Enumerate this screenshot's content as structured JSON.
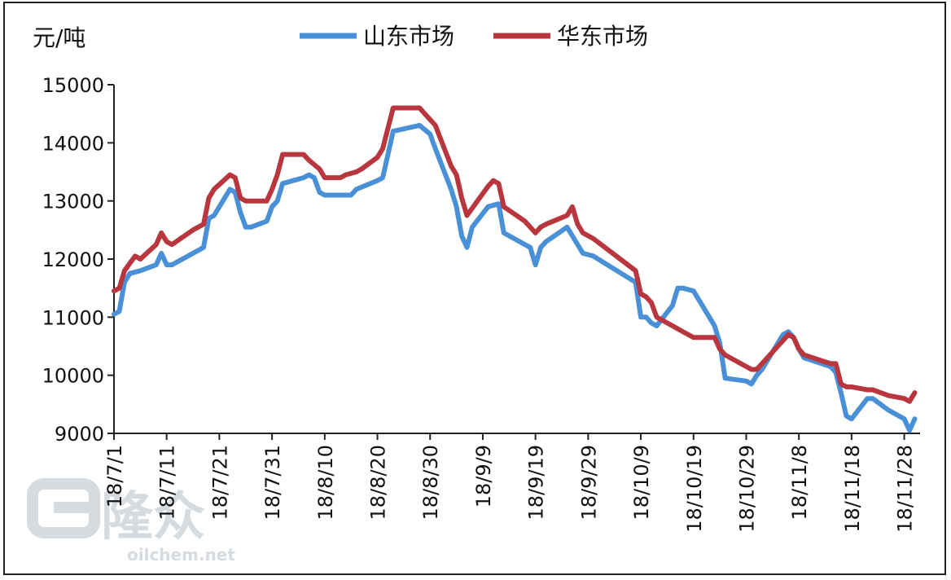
{
  "chart_data": {
    "type": "line",
    "y_unit_label": "元/吨",
    "ylim": [
      9000,
      15000
    ],
    "yticks": [
      9000,
      10000,
      11000,
      12000,
      13000,
      14000,
      15000
    ],
    "xlim": [
      "18/7/1",
      "18/12/1"
    ],
    "x_tick_labels": [
      "18/7/1",
      "18/7/11",
      "18/7/21",
      "18/7/31",
      "18/8/10",
      "18/8/20",
      "18/8/30",
      "18/9/9",
      "18/9/19",
      "18/9/29",
      "18/10/9",
      "18/10/19",
      "18/10/29",
      "18/11/8",
      "18/11/18",
      "18/11/28"
    ],
    "legend_position": "top",
    "grid": false,
    "series": [
      {
        "name": "山东市场",
        "color": "#4a90d6",
        "points": [
          [
            "18/7/1",
            11050
          ],
          [
            "18/7/2",
            11100
          ],
          [
            "18/7/3",
            11600
          ],
          [
            "18/7/4",
            11750
          ],
          [
            "18/7/6",
            11800
          ],
          [
            "18/7/9",
            11900
          ],
          [
            "18/7/10",
            12100
          ],
          [
            "18/7/11",
            11900
          ],
          [
            "18/7/12",
            11900
          ],
          [
            "18/7/16",
            12100
          ],
          [
            "18/7/18",
            12200
          ],
          [
            "18/7/19",
            12700
          ],
          [
            "18/7/20",
            12750
          ],
          [
            "18/7/23",
            13200
          ],
          [
            "18/7/24",
            13150
          ],
          [
            "18/7/25",
            12800
          ],
          [
            "18/7/26",
            12550
          ],
          [
            "18/7/27",
            12550
          ],
          [
            "18/7/30",
            12650
          ],
          [
            "18/7/31",
            12900
          ],
          [
            "18/8/1",
            13000
          ],
          [
            "18/8/2",
            13300
          ],
          [
            "18/8/6",
            13400
          ],
          [
            "18/8/7",
            13450
          ],
          [
            "18/8/8",
            13400
          ],
          [
            "18/8/9",
            13150
          ],
          [
            "18/8/10",
            13100
          ],
          [
            "18/8/15",
            13100
          ],
          [
            "18/8/16",
            13200
          ],
          [
            "18/8/20",
            13350
          ],
          [
            "18/8/21",
            13400
          ],
          [
            "18/8/22",
            13800
          ],
          [
            "18/8/23",
            14200
          ],
          [
            "18/8/28",
            14300
          ],
          [
            "18/8/30",
            14150
          ],
          [
            "18/8/31",
            13900
          ],
          [
            "18/9/3",
            13200
          ],
          [
            "18/9/4",
            12900
          ],
          [
            "18/9/5",
            12400
          ],
          [
            "18/9/6",
            12200
          ],
          [
            "18/9/7",
            12550
          ],
          [
            "18/9/10",
            12900
          ],
          [
            "18/9/12",
            12950
          ],
          [
            "18/9/13",
            12450
          ],
          [
            "18/9/17",
            12250
          ],
          [
            "18/9/18",
            12200
          ],
          [
            "18/9/19",
            11900
          ],
          [
            "18/9/20",
            12200
          ],
          [
            "18/9/21",
            12300
          ],
          [
            "18/9/25",
            12550
          ],
          [
            "18/9/26",
            12400
          ],
          [
            "18/9/28",
            12100
          ],
          [
            "18/9/30",
            12050
          ],
          [
            "18/10/8",
            11600
          ],
          [
            "18/10/9",
            11000
          ],
          [
            "18/10/10",
            11000
          ],
          [
            "18/10/11",
            10900
          ],
          [
            "18/10/12",
            10850
          ],
          [
            "18/10/15",
            11200
          ],
          [
            "18/10/16",
            11500
          ],
          [
            "18/10/17",
            11500
          ],
          [
            "18/10/19",
            11450
          ],
          [
            "18/10/23",
            10850
          ],
          [
            "18/10/24",
            10550
          ],
          [
            "18/10/25",
            9950
          ],
          [
            "18/10/29",
            9900
          ],
          [
            "18/10/30",
            9850
          ],
          [
            "18/10/31",
            10000
          ],
          [
            "18/11/1",
            10100
          ],
          [
            "18/11/5",
            10700
          ],
          [
            "18/11/6",
            10750
          ],
          [
            "18/11/7",
            10650
          ],
          [
            "18/11/8",
            10450
          ],
          [
            "18/11/9",
            10300
          ],
          [
            "18/11/14",
            10150
          ],
          [
            "18/11/15",
            10050
          ],
          [
            "18/11/16",
            9700
          ],
          [
            "18/11/17",
            9300
          ],
          [
            "18/11/18",
            9250
          ],
          [
            "18/11/21",
            9600
          ],
          [
            "18/11/22",
            9600
          ],
          [
            "18/11/25",
            9400
          ],
          [
            "18/11/28",
            9250
          ],
          [
            "18/11/29",
            9050
          ],
          [
            "18/11/30",
            9250
          ]
        ]
      },
      {
        "name": "华东市场",
        "color": "#b8373f",
        "points": [
          [
            "18/7/1",
            11450
          ],
          [
            "18/7/2",
            11500
          ],
          [
            "18/7/3",
            11800
          ],
          [
            "18/7/5",
            12050
          ],
          [
            "18/7/6",
            12000
          ],
          [
            "18/7/9",
            12250
          ],
          [
            "18/7/10",
            12450
          ],
          [
            "18/7/11",
            12300
          ],
          [
            "18/7/12",
            12250
          ],
          [
            "18/7/16",
            12500
          ],
          [
            "18/7/18",
            12600
          ],
          [
            "18/7/19",
            13050
          ],
          [
            "18/7/20",
            13200
          ],
          [
            "18/7/23",
            13450
          ],
          [
            "18/7/24",
            13400
          ],
          [
            "18/7/25",
            13050
          ],
          [
            "18/7/26",
            13000
          ],
          [
            "18/7/30",
            13000
          ],
          [
            "18/7/31",
            13200
          ],
          [
            "18/8/1",
            13450
          ],
          [
            "18/8/2",
            13800
          ],
          [
            "18/8/6",
            13800
          ],
          [
            "18/8/7",
            13700
          ],
          [
            "18/8/9",
            13550
          ],
          [
            "18/8/10",
            13400
          ],
          [
            "18/8/13",
            13400
          ],
          [
            "18/8/14",
            13450
          ],
          [
            "18/8/16",
            13500
          ],
          [
            "18/8/17",
            13550
          ],
          [
            "18/8/20",
            13750
          ],
          [
            "18/8/21",
            13900
          ],
          [
            "18/8/23",
            14600
          ],
          [
            "18/8/28",
            14600
          ],
          [
            "18/8/29",
            14500
          ],
          [
            "18/8/31",
            14300
          ],
          [
            "18/9/3",
            13600
          ],
          [
            "18/9/4",
            13450
          ],
          [
            "18/9/5",
            13050
          ],
          [
            "18/9/6",
            12750
          ],
          [
            "18/9/10",
            13250
          ],
          [
            "18/9/11",
            13350
          ],
          [
            "18/9/12",
            13300
          ],
          [
            "18/9/13",
            12900
          ],
          [
            "18/9/17",
            12650
          ],
          [
            "18/9/18",
            12550
          ],
          [
            "18/9/19",
            12450
          ],
          [
            "18/9/20",
            12550
          ],
          [
            "18/9/21",
            12600
          ],
          [
            "18/9/25",
            12750
          ],
          [
            "18/9/26",
            12900
          ],
          [
            "18/9/27",
            12600
          ],
          [
            "18/9/28",
            12450
          ],
          [
            "18/9/30",
            12350
          ],
          [
            "18/10/8",
            11800
          ],
          [
            "18/10/9",
            11400
          ],
          [
            "18/10/10",
            11350
          ],
          [
            "18/10/11",
            11250
          ],
          [
            "18/10/12",
            11000
          ],
          [
            "18/10/15",
            10850
          ],
          [
            "18/10/16",
            10800
          ],
          [
            "18/10/17",
            10750
          ],
          [
            "18/10/19",
            10650
          ],
          [
            "18/10/23",
            10650
          ],
          [
            "18/10/24",
            10450
          ],
          [
            "18/10/25",
            10350
          ],
          [
            "18/10/29",
            10150
          ],
          [
            "18/10/30",
            10100
          ],
          [
            "18/10/31",
            10100
          ],
          [
            "18/11/1",
            10200
          ],
          [
            "18/11/5",
            10600
          ],
          [
            "18/11/6",
            10700
          ],
          [
            "18/11/7",
            10650
          ],
          [
            "18/11/8",
            10450
          ],
          [
            "18/11/9",
            10350
          ],
          [
            "18/11/14",
            10200
          ],
          [
            "18/11/15",
            10200
          ],
          [
            "18/11/16",
            9850
          ],
          [
            "18/11/17",
            9800
          ],
          [
            "18/11/18",
            9800
          ],
          [
            "18/11/21",
            9750
          ],
          [
            "18/11/22",
            9750
          ],
          [
            "18/11/25",
            9650
          ],
          [
            "18/11/28",
            9600
          ],
          [
            "18/11/29",
            9550
          ],
          [
            "18/11/30",
            9700
          ]
        ]
      }
    ]
  },
  "watermark": {
    "brand_glyphs": "隆众",
    "site": "oilchem.net"
  },
  "colors": {
    "axis": "#222222",
    "watermark": "#d6dbe0"
  }
}
